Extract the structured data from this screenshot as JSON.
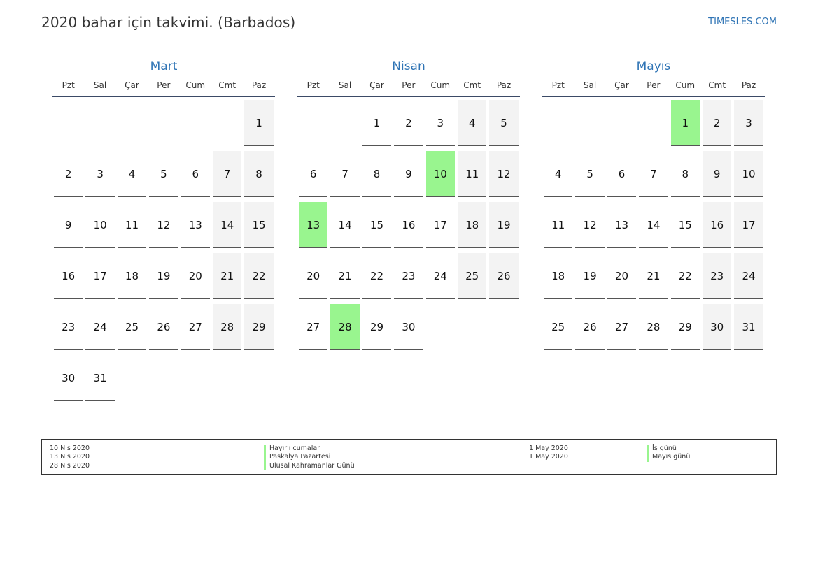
{
  "header": {
    "title": "2020 bahar için takvimi. (Barbados)",
    "site": "TIMESLES.COM"
  },
  "weekdays": [
    "Pzt",
    "Sal",
    "Çar",
    "Per",
    "Cum",
    "Cmt",
    "Paz"
  ],
  "colors": {
    "holiday": "#99f58f",
    "weekend": "#f3f3f3",
    "accent": "#2f74b5"
  },
  "months": [
    {
      "name": "Mart",
      "start_offset": 6,
      "days": 31,
      "holidays": []
    },
    {
      "name": "Nisan",
      "start_offset": 2,
      "days": 30,
      "holidays": [
        10,
        13,
        28
      ]
    },
    {
      "name": "Mayıs",
      "start_offset": 4,
      "days": 31,
      "holidays": [
        1
      ]
    }
  ],
  "legend": {
    "left": [
      {
        "date": "10 Nis 2020",
        "name": "Hayırlı cumalar"
      },
      {
        "date": "13 Nis 2020",
        "name": "Paskalya Pazartesi"
      },
      {
        "date": "28 Nis 2020",
        "name": "Ulusal Kahramanlar Günü"
      }
    ],
    "right": [
      {
        "date": "1 May 2020",
        "name": "İş günü"
      },
      {
        "date": "1 May 2020",
        "name": "Mayıs günü"
      }
    ]
  }
}
